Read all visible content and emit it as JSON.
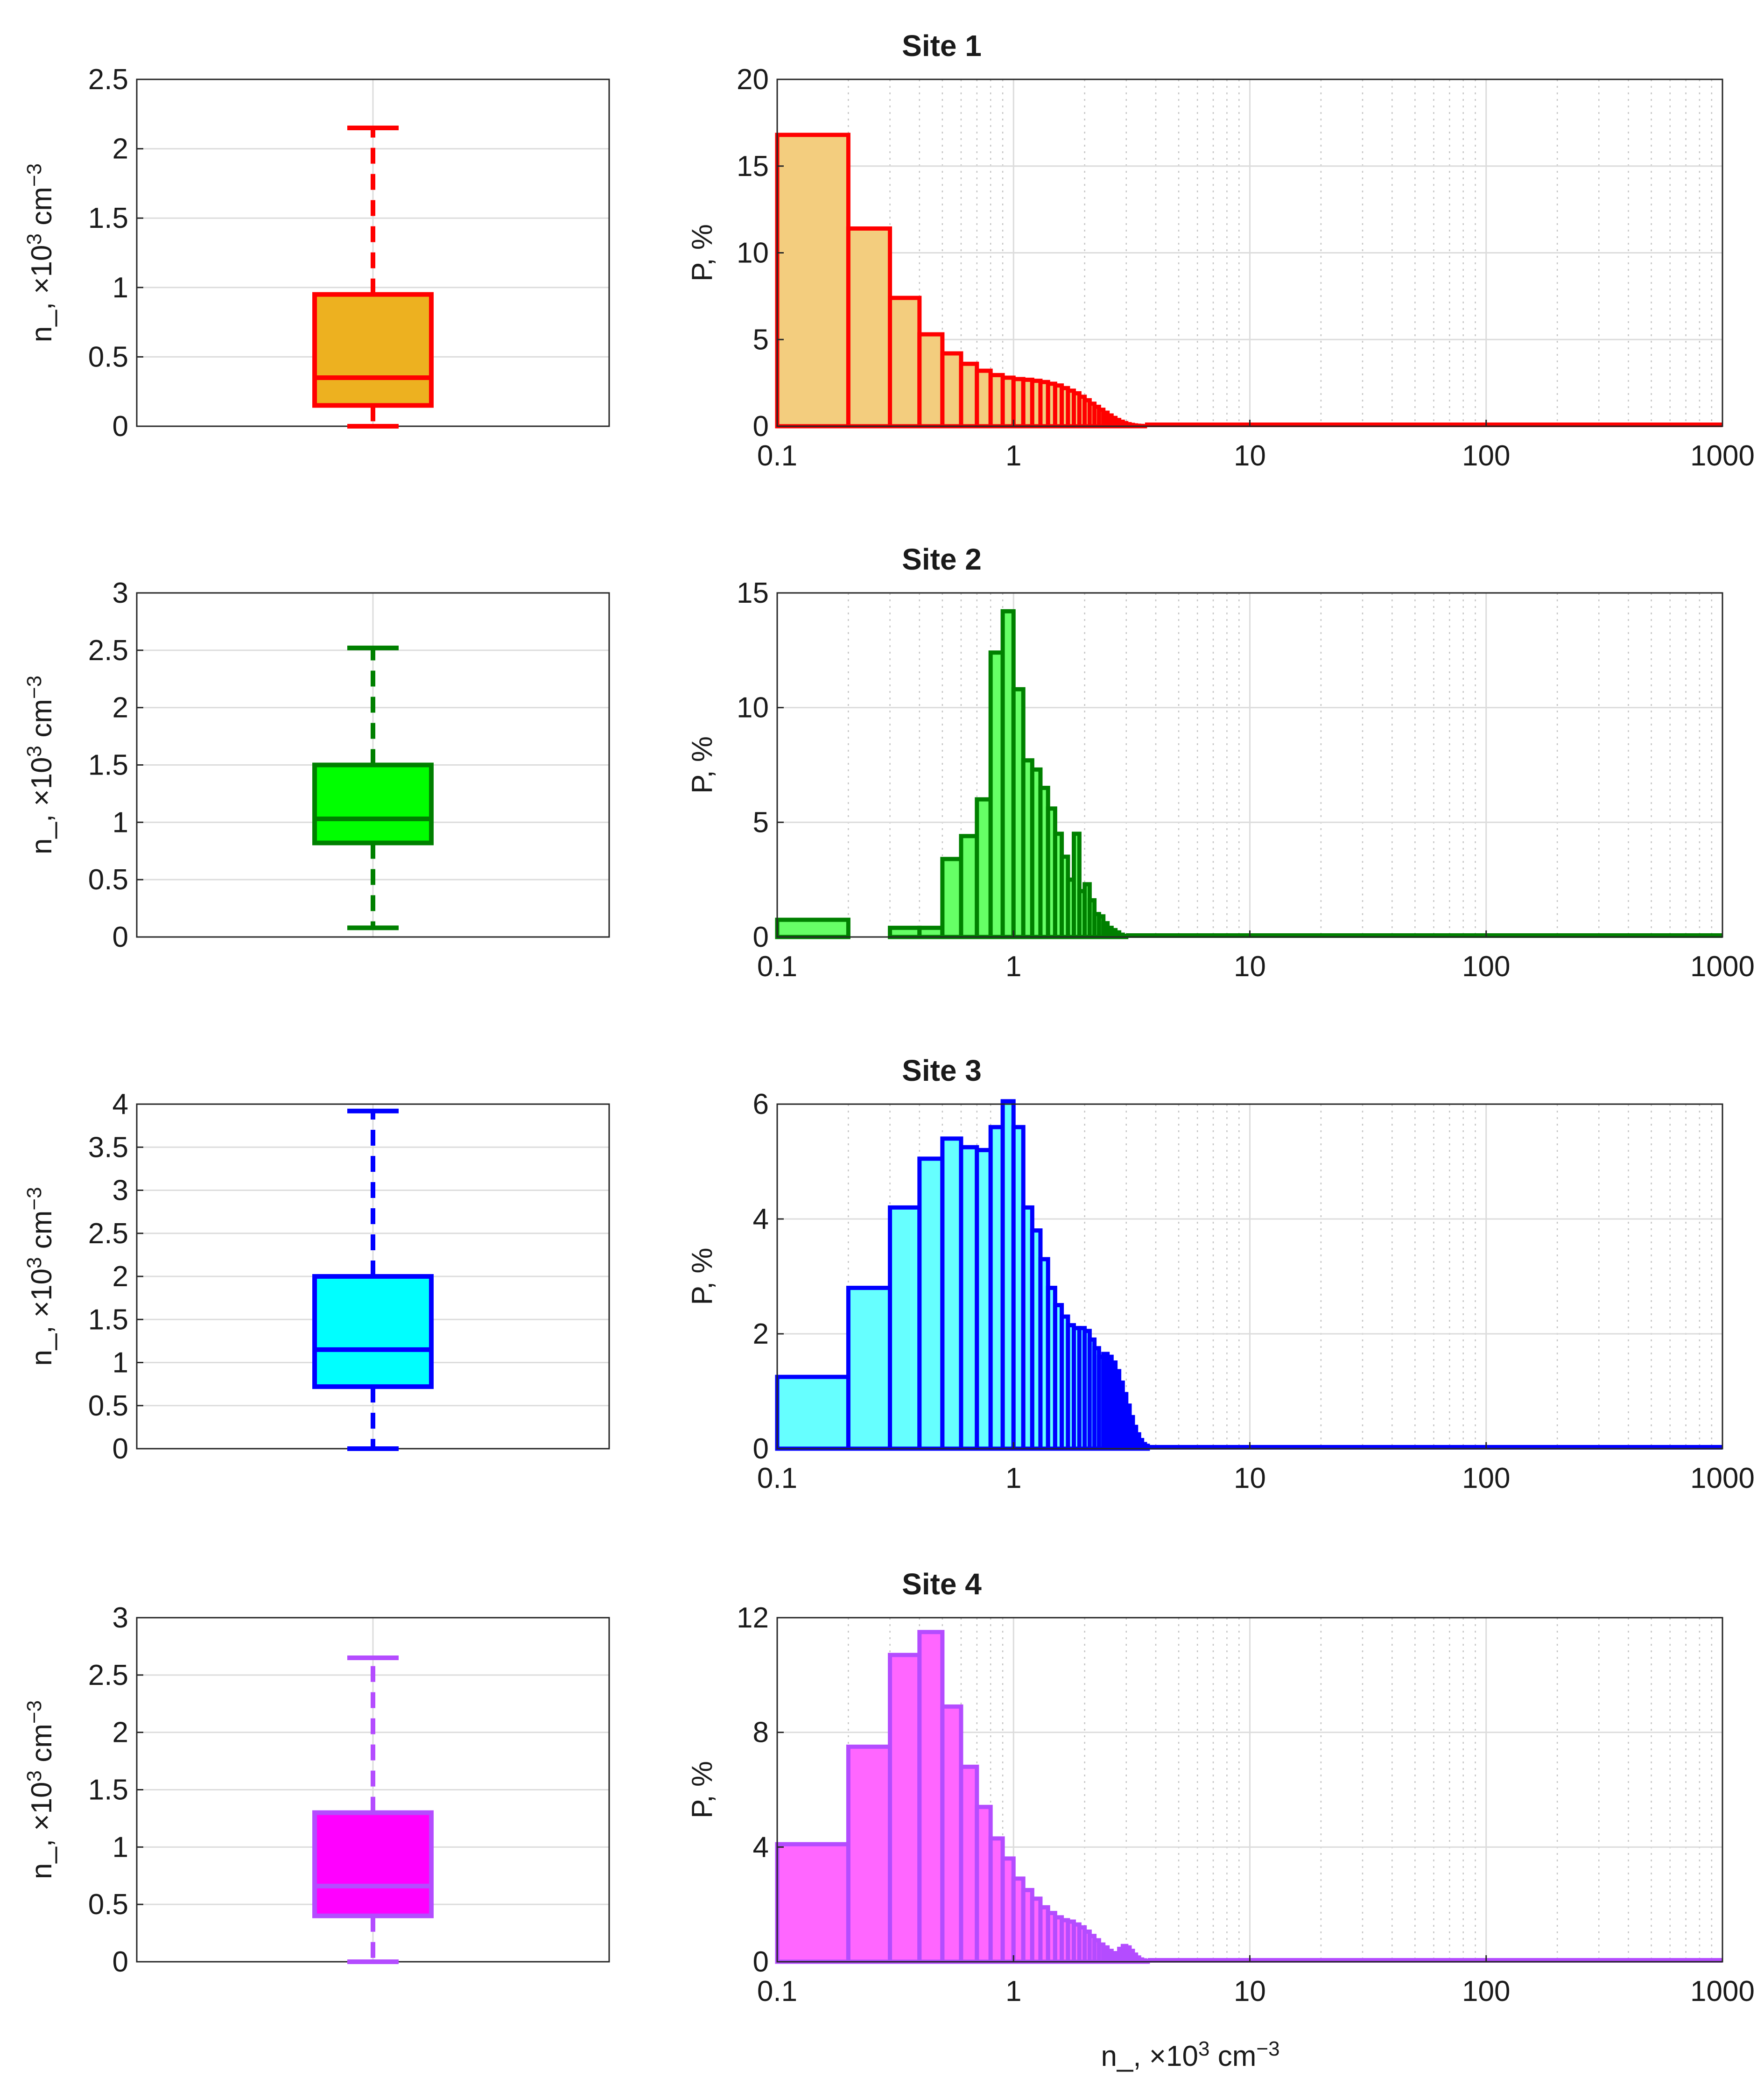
{
  "x_axis_label": "n_, ×10³ cm⁻³",
  "box_ylabel": "n_, ×10³ cm⁻³",
  "hist_ylabel": "P, %",
  "x_ticks": [
    "0.1",
    "1",
    "10",
    "100",
    "1000"
  ],
  "chart_data": [
    {
      "type": "box",
      "panel": "Site 1",
      "ylabel": "n_, ×10³ cm⁻³",
      "ylim": [
        0,
        2.5
      ],
      "yticks": [
        0,
        0.5,
        1,
        1.5,
        2,
        2.5
      ],
      "ytick_labels": [
        "0",
        "0.5",
        "1",
        "1.5",
        "2",
        "2.5"
      ],
      "min": 0.0,
      "q1": 0.15,
      "median": 0.35,
      "q3": 0.95,
      "max": 2.15,
      "box_fill": "#EDB120",
      "line_color": "#FF0000"
    },
    {
      "type": "bar",
      "title": "Site 1",
      "xscale": "log",
      "xlim": [
        0.1,
        1000
      ],
      "ylim": [
        0,
        20
      ],
      "yticks": [
        0,
        5,
        10,
        15,
        20
      ],
      "ytick_labels": [
        "0",
        "5",
        "10",
        "15",
        "20"
      ],
      "xlabel": "",
      "ylabel": "P, %",
      "bin_width": 0.1,
      "values": [
        16.8,
        11.4,
        7.4,
        5.3,
        4.2,
        3.6,
        3.2,
        2.95,
        2.8,
        2.72,
        2.68,
        2.62,
        2.55,
        2.45,
        2.35,
        2.2,
        2.05,
        1.9,
        1.7,
        1.5,
        1.3,
        1.12,
        0.95,
        0.78,
        0.62,
        0.48,
        0.36,
        0.26,
        0.18,
        0.12,
        0.08,
        0.05,
        0.03,
        0.02,
        0.01
      ],
      "fill": "#F3CD7E",
      "edge": "#FF0000"
    },
    {
      "type": "box",
      "panel": "Site 2",
      "ylabel": "n_, ×10³ cm⁻³",
      "ylim": [
        0,
        3
      ],
      "yticks": [
        0,
        0.5,
        1,
        1.5,
        2,
        2.5,
        3
      ],
      "ytick_labels": [
        "0",
        "0.5",
        "1",
        "1.5",
        "2",
        "2.5",
        "3"
      ],
      "min": 0.08,
      "q1": 0.82,
      "median": 1.03,
      "q3": 1.5,
      "max": 2.52,
      "box_fill": "#00FF00",
      "line_color": "#008000"
    },
    {
      "type": "bar",
      "title": "Site 2",
      "xscale": "log",
      "xlim": [
        0.1,
        1000
      ],
      "ylim": [
        0,
        15
      ],
      "yticks": [
        0,
        5,
        10,
        15
      ],
      "ytick_labels": [
        "0",
        "5",
        "10",
        "15"
      ],
      "xlabel": "",
      "ylabel": "P, %",
      "bin_width": 0.1,
      "values": [
        0.75,
        0.0,
        0.4,
        0.4,
        3.4,
        4.4,
        6.0,
        12.4,
        14.2,
        10.8,
        7.7,
        7.3,
        6.5,
        5.6,
        4.5,
        3.5,
        2.5,
        4.5,
        2.0,
        2.3,
        1.6,
        1.0,
        0.9,
        0.6,
        0.4,
        0.3,
        0.2,
        0.1,
        0.05
      ],
      "fill": "#66FF66",
      "edge": "#008000"
    },
    {
      "type": "box",
      "panel": "Site 3",
      "ylabel": "n_, ×10³ cm⁻³",
      "ylim": [
        0,
        4
      ],
      "yticks": [
        0,
        0.5,
        1,
        1.5,
        2,
        2.5,
        3,
        3.5,
        4
      ],
      "ytick_labels": [
        "0",
        "0.5",
        "1",
        "1.5",
        "2",
        "2.5",
        "3",
        "3.5",
        "4"
      ],
      "min": 0.0,
      "q1": 0.72,
      "median": 1.15,
      "q3": 2.0,
      "max": 3.92,
      "box_fill": "#00FFFF",
      "line_color": "#0000FF"
    },
    {
      "type": "bar",
      "title": "Site 3",
      "xscale": "log",
      "xlim": [
        0.1,
        1000
      ],
      "ylim": [
        0,
        6
      ],
      "yticks": [
        0,
        2,
        4,
        6
      ],
      "ytick_labels": [
        "0",
        "2",
        "4",
        "6"
      ],
      "xlabel": "",
      "ylabel": "P, %",
      "bin_width": 0.1,
      "values": [
        1.25,
        2.8,
        4.2,
        5.05,
        5.4,
        5.25,
        5.2,
        5.6,
        6.05,
        5.6,
        4.2,
        3.8,
        3.3,
        2.8,
        2.5,
        2.3,
        2.15,
        2.1,
        2.1,
        2.05,
        1.9,
        1.75,
        1.6,
        1.65,
        1.6,
        1.5,
        1.35,
        1.15,
        0.95,
        0.75,
        0.55,
        0.38,
        0.25,
        0.15,
        0.08,
        0.05
      ],
      "fill": "#66FFFF",
      "edge": "#0000FF"
    },
    {
      "type": "box",
      "panel": "Site 4",
      "ylabel": "n_, ×10³ cm⁻³",
      "ylim": [
        0,
        3
      ],
      "yticks": [
        0,
        0.5,
        1,
        1.5,
        2,
        2.5,
        3
      ],
      "ytick_labels": [
        "0",
        "0.5",
        "1",
        "1.5",
        "2",
        "2.5",
        "3"
      ],
      "min": 0.0,
      "q1": 0.4,
      "median": 0.66,
      "q3": 1.3,
      "max": 2.65,
      "box_fill": "#FF00FF",
      "line_color": "#B44CFF"
    },
    {
      "type": "bar",
      "title": "Site 4",
      "xscale": "log",
      "xlim": [
        0.1,
        1000
      ],
      "ylim": [
        0,
        12
      ],
      "yticks": [
        0,
        4,
        8,
        12
      ],
      "ytick_labels": [
        "0",
        "4",
        "8",
        "12"
      ],
      "xlabel": "n_, ×10³ cm⁻³",
      "ylabel": "P, %",
      "bin_width": 0.1,
      "values": [
        4.1,
        7.5,
        10.7,
        11.5,
        8.9,
        6.8,
        5.4,
        4.3,
        3.6,
        2.9,
        2.5,
        2.2,
        1.9,
        1.7,
        1.55,
        1.45,
        1.4,
        1.3,
        1.2,
        1.05,
        0.9,
        0.75,
        0.6,
        0.5,
        0.38,
        0.3,
        0.3,
        0.45,
        0.55,
        0.5,
        0.38,
        0.25,
        0.15,
        0.08,
        0.05,
        0.03
      ],
      "fill": "#FF66FF",
      "edge": "#B44CFF"
    }
  ]
}
